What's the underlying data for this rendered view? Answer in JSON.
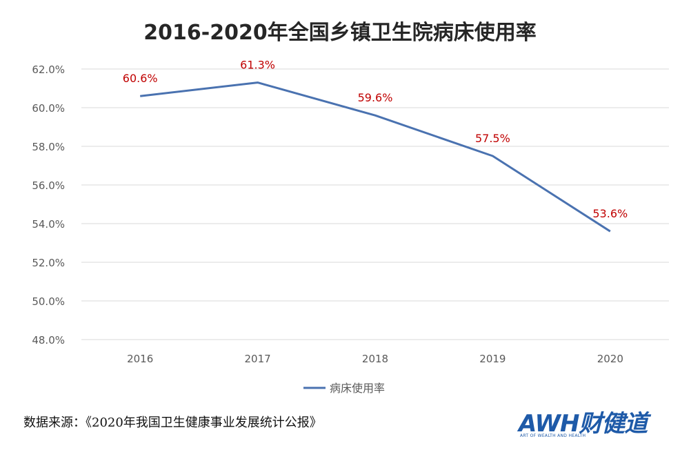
{
  "chart_data": {
    "type": "line",
    "title": "2016-2020年全国乡镇卫生院病床使用率",
    "categories": [
      "2016",
      "2017",
      "2018",
      "2019",
      "2020"
    ],
    "series": [
      {
        "name": "病床使用率",
        "values": [
          60.6,
          61.3,
          59.6,
          57.5,
          53.6
        ],
        "data_labels": [
          "60.6%",
          "61.3%",
          "59.6%",
          "57.5%",
          "53.6%"
        ],
        "color": "#4a72b0"
      }
    ],
    "ylim": [
      48.0,
      62.0
    ],
    "y_ticks": [
      48.0,
      50.0,
      52.0,
      54.0,
      56.0,
      58.0,
      60.0,
      62.0
    ],
    "y_tick_labels": [
      "48.0%",
      "50.0%",
      "52.0%",
      "54.0%",
      "56.0%",
      "58.0%",
      "60.0%",
      "62.0%"
    ],
    "grid": true,
    "legend": "bottom-center",
    "label_color": "#c00000"
  },
  "source": "数据来源：《2020年我国卫生健康事业发展统计公报》",
  "logo": {
    "main": "AWH财健道",
    "sub": "ART OF WEALTH AND HEALTH"
  }
}
